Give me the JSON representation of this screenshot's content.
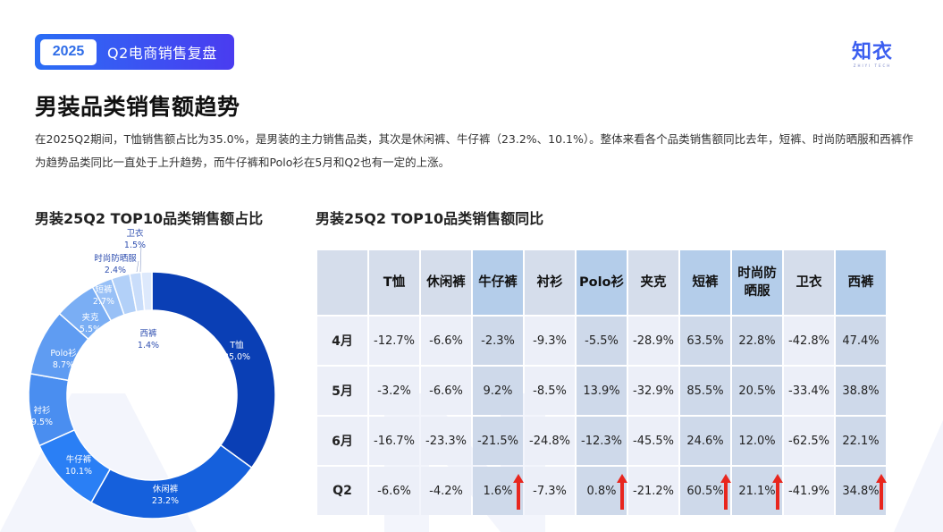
{
  "header": {
    "badge_year": "2025",
    "badge_title": "Q2电商销售复盘",
    "logo_main": "知衣",
    "logo_sub": "ZHIYI TECH"
  },
  "page": {
    "title": "男装品类销售额趋势",
    "summary": "在2025Q2期间，T恤销售额占比为35.0%，是男装的主力销售品类，其次是休闲裤、牛仔裤（23.2%、10.1%）。整体来看各个品类销售额同比去年，短裤、时尚防晒服和西裤作为趋势品类同比一直处于上升趋势，而牛仔裤和Polo衫在5月和Q2也有一定的上涨。"
  },
  "left_section": {
    "title": "男装25Q2 TOP10品类销售额占比"
  },
  "right_section": {
    "title": "男装25Q2 TOP10品类销售额同比"
  },
  "colors": {
    "badge_gradient_start": "#2a6ef5",
    "badge_gradient_end": "#4a3cf0",
    "arrow": "#e8261e",
    "header_light": "#d5ddeb",
    "header_strong": "#b4cdea",
    "cell_light": "#eceff8",
    "cell_strong": "#ced9ea"
  },
  "chart_data": [
    {
      "type": "pie",
      "subtype": "donut",
      "title": "男装25Q2 TOP10品类销售额占比",
      "categories": [
        "T恤",
        "休闲裤",
        "牛仔裤",
        "衬衫",
        "Polo衫",
        "夹克",
        "短裤",
        "时尚防晒服",
        "卫衣",
        "西裤"
      ],
      "values": [
        35.0,
        23.2,
        10.1,
        9.5,
        8.7,
        5.5,
        2.7,
        2.4,
        1.5,
        1.4
      ],
      "labels": [
        "35.0%",
        "23.2%",
        "10.1%",
        "9.5%",
        "8.7%",
        "5.5%",
        "2.7%",
        "2.4%",
        "1.5%",
        "1.4%"
      ],
      "colors": [
        "#0a3fb5",
        "#1560dc",
        "#2a7ff5",
        "#4a8ef0",
        "#5f9cf2",
        "#7aaef4",
        "#98c0f6",
        "#b2d0f8",
        "#c9ddfa",
        "#dde9fc"
      ],
      "unit": "%"
    },
    {
      "type": "table",
      "title": "男装25Q2 TOP10品类销售额同比",
      "columns": [
        "T恤",
        "休闲裤",
        "牛仔裤",
        "衬衫",
        "Polo衫",
        "夹克",
        "短裤",
        "时尚防晒服",
        "卫衣",
        "西裤"
      ],
      "highlight_columns": [
        "牛仔裤",
        "Polo衫",
        "短裤",
        "时尚防晒服",
        "西裤"
      ],
      "rows": [
        {
          "label": "4月",
          "values": [
            "-12.7%",
            "-6.6%",
            "-2.3%",
            "-9.3%",
            "-5.5%",
            "-28.9%",
            "63.5%",
            "22.8%",
            "-42.8%",
            "47.4%"
          ]
        },
        {
          "label": "5月",
          "values": [
            "-3.2%",
            "-6.6%",
            "9.2%",
            "-8.5%",
            "13.9%",
            "-32.9%",
            "85.5%",
            "20.5%",
            "-33.4%",
            "38.8%"
          ]
        },
        {
          "label": "6月",
          "values": [
            "-16.7%",
            "-23.3%",
            "-21.5%",
            "-24.8%",
            "-12.3%",
            "-45.5%",
            "24.6%",
            "12.0%",
            "-62.5%",
            "22.1%"
          ]
        },
        {
          "label": "Q2",
          "values": [
            "-6.6%",
            "-4.2%",
            "1.6%",
            "-7.3%",
            "0.8%",
            "-21.2%",
            "60.5%",
            "21.1%",
            "-41.9%",
            "34.8%"
          ]
        }
      ],
      "up_arrows_in_row": "Q2",
      "up_arrow_columns": [
        "牛仔裤",
        "Polo衫",
        "短裤",
        "时尚防晒服",
        "西裤"
      ]
    }
  ],
  "table": {
    "corner": "",
    "headers": [
      "T恤",
      "休闲裤",
      "牛仔裤",
      "衬衫",
      "Polo衫",
      "夹克",
      "短裤",
      "时尚防晒服",
      "卫衣",
      "西裤"
    ],
    "header_lines": [
      [
        "T恤"
      ],
      [
        "休闲裤"
      ],
      [
        "牛仔裤"
      ],
      [
        "衬衫"
      ],
      [
        "Polo衫"
      ],
      [
        "夹克"
      ],
      [
        "短裤"
      ],
      [
        "时尚防",
        "晒服"
      ],
      [
        "卫衣"
      ],
      [
        "西裤"
      ]
    ],
    "rows": [
      {
        "label": "4月",
        "values": [
          "-12.7%",
          "-6.6%",
          "-2.3%",
          "-9.3%",
          "-5.5%",
          "-28.9%",
          "63.5%",
          "22.8%",
          "-42.8%",
          "47.4%"
        ]
      },
      {
        "label": "5月",
        "values": [
          "-3.2%",
          "-6.6%",
          "9.2%",
          "-8.5%",
          "13.9%",
          "-32.9%",
          "85.5%",
          "20.5%",
          "-33.4%",
          "38.8%"
        ]
      },
      {
        "label": "6月",
        "values": [
          "-16.7%",
          "-23.3%",
          "-21.5%",
          "-24.8%",
          "-12.3%",
          "-45.5%",
          "24.6%",
          "12.0%",
          "-62.5%",
          "22.1%"
        ]
      },
      {
        "label": "Q2",
        "values": [
          "-6.6%",
          "-4.2%",
          "1.6%",
          "-7.3%",
          "0.8%",
          "-21.2%",
          "60.5%",
          "21.1%",
          "-41.9%",
          "34.8%"
        ]
      }
    ]
  },
  "donut_labels": [
    {
      "name": "T恤",
      "value": "35.0%"
    },
    {
      "name": "休闲裤",
      "value": "23.2%"
    },
    {
      "name": "牛仔裤",
      "value": "10.1%"
    },
    {
      "name": "衬衫",
      "value": "9.5%"
    },
    {
      "name": "Polo衫",
      "value": "8.7%"
    },
    {
      "name": "夹克",
      "value": "5.5%"
    },
    {
      "name": "短裤",
      "value": "2.7%"
    },
    {
      "name": "时尚防晒服",
      "value": "2.4%"
    },
    {
      "name": "卫衣",
      "value": "1.5%"
    },
    {
      "name": "西裤",
      "value": "1.4%"
    }
  ]
}
